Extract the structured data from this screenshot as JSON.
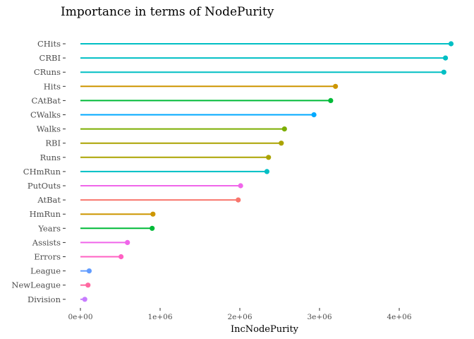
{
  "chart_data": {
    "type": "lollipop",
    "title": "Importance in terms of NodePurity",
    "xlabel": "IncNodePurity",
    "ylabel": "",
    "xlim": [
      -110000,
      4750000
    ],
    "xticks": [
      0,
      1000000,
      2000000,
      3000000,
      4000000
    ],
    "xtick_labels": [
      "0e+00",
      "1e+06",
      "2e+06",
      "3e+06",
      "4e+06"
    ],
    "grid": false,
    "categories": [
      "CHits",
      "CRBI",
      "CRuns",
      "Hits",
      "CAtBat",
      "CWalks",
      "Walks",
      "RBI",
      "Runs",
      "CHmRun",
      "PutOuts",
      "AtBat",
      "HmRun",
      "Years",
      "Assists",
      "Errors",
      "League",
      "NewLeague",
      "Division"
    ],
    "values": [
      4650000,
      4580000,
      4560000,
      3200000,
      3140000,
      2930000,
      2560000,
      2520000,
      2360000,
      2340000,
      2010000,
      1980000,
      910000,
      900000,
      590000,
      510000,
      110000,
      95000,
      55000
    ],
    "colors": [
      "#00BFC4",
      "#00BFC4",
      "#00BFC4",
      "#CD9600",
      "#00BA38",
      "#00A9FF",
      "#7CAE00",
      "#ABA300",
      "#ABA300",
      "#00BFC4",
      "#F066EA",
      "#F8766D",
      "#CD9600",
      "#00BA38",
      "#F066EA",
      "#FF61C3",
      "#619CFF",
      "#FF68A1",
      "#C77CFF"
    ]
  }
}
